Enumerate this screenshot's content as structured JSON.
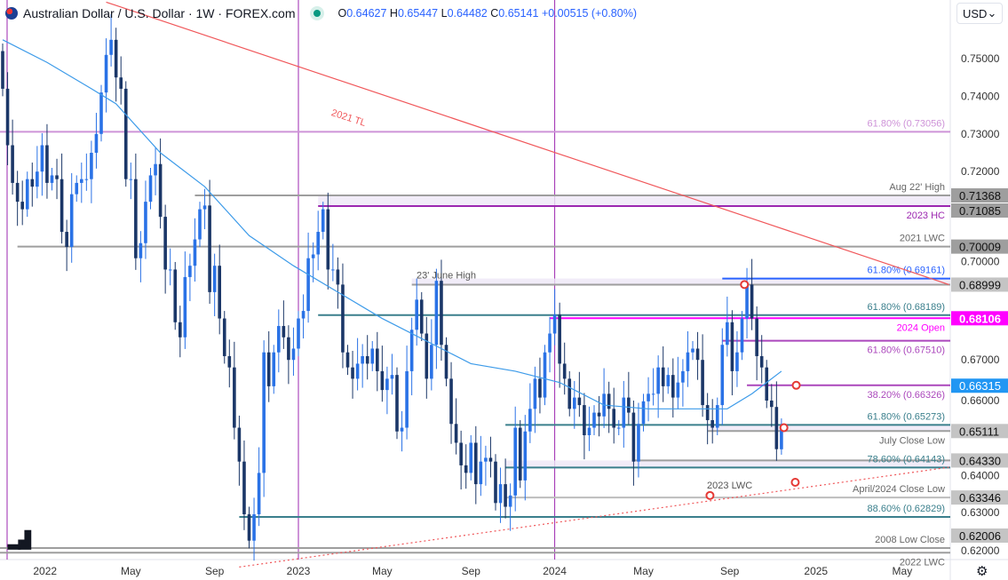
{
  "header": {
    "symbol_title": "Australian Dollar / U.S. Dollar · 1W · FOREX.com",
    "open_label": "O",
    "open": "0.64627",
    "high_label": "H",
    "high": "0.65447",
    "low_label": "L",
    "low": "0.64482",
    "close_label": "C",
    "close": "0.65141",
    "change": "+0.00515 (+0.80%)"
  },
  "currency_selector": "USD",
  "logo": "TV",
  "settings_icon": "gear-icon",
  "colors": {
    "bull": "#2a72e6",
    "bear": "#1b3768",
    "ma": "#3d9be9",
    "trendline": "#f0575a",
    "year_line": "#9c27b0",
    "fib_teal": "#3a7f8c",
    "open_magenta": "#ff00ff"
  },
  "chart_data": {
    "type": "candlestick",
    "interval": "1W",
    "start_week": "2021-11-01",
    "ylim": [
      0.615,
      0.765
    ],
    "closes": [
      0.742,
      0.727,
      0.717,
      0.712,
      0.71,
      0.718,
      0.716,
      0.72,
      0.727,
      0.717,
      0.719,
      0.718,
      0.704,
      0.7,
      0.714,
      0.717,
      0.718,
      0.718,
      0.725,
      0.73,
      0.741,
      0.751,
      0.755,
      0.745,
      0.742,
      0.718,
      0.718,
      0.697,
      0.701,
      0.712,
      0.719,
      0.722,
      0.708,
      0.694,
      0.694,
      0.68,
      0.676,
      0.692,
      0.695,
      0.702,
      0.71,
      0.711,
      0.688,
      0.695,
      0.681,
      0.671,
      0.668,
      0.652,
      0.643,
      0.629,
      0.622,
      0.629,
      0.64,
      0.672,
      0.663,
      0.672,
      0.679,
      0.676,
      0.67,
      0.673,
      0.681,
      0.683,
      0.697,
      0.698,
      0.704,
      0.71,
      0.694,
      0.694,
      0.69,
      0.672,
      0.668,
      0.665,
      0.669,
      0.671,
      0.669,
      0.673,
      0.667,
      0.662,
      0.665,
      0.666,
      0.651,
      0.652,
      0.667,
      0.678,
      0.686,
      0.677,
      0.665,
      0.674,
      0.691,
      0.674,
      0.665,
      0.653,
      0.648,
      0.642,
      0.64,
      0.648,
      0.637,
      0.643,
      0.644,
      0.643,
      0.632,
      0.637,
      0.631,
      0.634,
      0.652,
      0.638,
      0.651,
      0.657,
      0.665,
      0.66,
      0.672,
      0.677,
      0.682,
      0.669,
      0.665,
      0.657,
      0.66,
      0.658,
      0.65,
      0.652,
      0.656,
      0.655,
      0.661,
      0.657,
      0.652,
      0.652,
      0.66,
      0.656,
      0.643,
      0.653,
      0.659,
      0.661,
      0.661,
      0.668,
      0.663,
      0.666,
      0.66,
      0.664,
      0.667,
      0.672,
      0.673,
      0.67,
      0.658,
      0.654,
      0.652,
      0.658,
      0.674,
      0.68,
      0.667,
      0.672,
      0.681,
      0.69,
      0.681,
      0.671,
      0.668,
      0.6592,
      0.6575,
      0.6463,
      0.65141
    ],
    "ma_52": {
      "weeks": [
        0,
        9,
        18,
        23,
        32,
        41,
        50,
        59,
        68,
        77,
        86,
        95,
        104,
        113,
        122,
        131,
        140,
        147,
        152,
        155,
        158
      ],
      "values": [
        0.755,
        0.749,
        0.742,
        0.738,
        0.725,
        0.716,
        0.703,
        0.695,
        0.688,
        0.681,
        0.675,
        0.669,
        0.667,
        0.664,
        0.658,
        0.657,
        0.657,
        0.657,
        0.661,
        0.664,
        0.667
      ]
    },
    "x_ticks": [
      {
        "label": "2022",
        "week": 8.6
      },
      {
        "label": "May",
        "week": 26
      },
      {
        "label": "Sep",
        "week": 43
      },
      {
        "label": "2023",
        "week": 60
      },
      {
        "label": "May",
        "week": 77
      },
      {
        "label": "Sep",
        "week": 95
      },
      {
        "label": "2024",
        "week": 112
      },
      {
        "label": "May",
        "week": 130
      },
      {
        "label": "Sep",
        "week": 147.5
      },
      {
        "label": "2025",
        "week": 165
      },
      {
        "label": "May",
        "week": 182.5
      }
    ],
    "y_ticks": [
      "0.75000",
      "0.74000",
      "0.73000",
      "0.72000",
      "0.70000",
      "0.67000",
      "0.66000",
      "0.64000",
      "0.63000",
      "0.62000"
    ],
    "levels": [
      {
        "price": 0.73056,
        "label": "61.80% (0.73056)",
        "color": "#ce93d8",
        "from_week": -1,
        "axis": ""
      },
      {
        "price": 0.71368,
        "label": "Aug 22' High",
        "color": "#9e9e9e",
        "from_week": 39,
        "axis": "0.71368"
      },
      {
        "price": 0.71085,
        "label": "2023 HC",
        "color": "#9c27b0",
        "from_week": 64,
        "axis": "0.71085",
        "zone_to": 0.71368
      },
      {
        "price": 0.70009,
        "label": "2021 LWC",
        "color": "#9e9e9e",
        "from_week": 3,
        "axis": "0.70009"
      },
      {
        "price": 0.69161,
        "label": "61.80% (0.69161)",
        "color": "#2962ff",
        "from_week": 146,
        "axis": ""
      },
      {
        "price": 0.68999,
        "label": "",
        "color": "#9e9e9e",
        "from_week": 83,
        "axis": "0.68999",
        "zone_to": 0.69161
      },
      {
        "price": 0.68189,
        "label": "61.80% (0.68189)",
        "color": "#3a7f8c",
        "from_week": 64,
        "axis": ""
      },
      {
        "price": 0.68106,
        "label": "2024 Open",
        "color": "#ff00ff",
        "from_week": 111,
        "axis": "0.68106"
      },
      {
        "price": 0.6751,
        "label": "61.80% (0.67510)",
        "color": "#ab47bc",
        "from_week": 146,
        "axis": ""
      },
      {
        "price": 0.66326,
        "label": "38.20% (0.66326)",
        "color": "#ab47bc",
        "from_week": 151,
        "axis": ""
      },
      {
        "price": 0.65273,
        "label": "61.80% (0.65273)",
        "color": "#3a7f8c",
        "from_week": 102,
        "axis": ""
      },
      {
        "price": 0.65111,
        "label": "July Close Low",
        "color": "#9e9e9e",
        "from_week": 143,
        "axis": "0.65111",
        "zone_to": 0.65273
      },
      {
        "price": 0.6433,
        "label": "",
        "color": "#9e9e9e",
        "from_week": 128,
        "axis": "0.64330"
      },
      {
        "price": 0.64143,
        "label": "78.60% (0.64143)",
        "color": "#3a7f8c",
        "from_week": 102,
        "axis": "",
        "zone_to": 0.6433
      },
      {
        "price": 0.63346,
        "label": "April/2024 Close Low",
        "color": "#bdbdbd",
        "from_week": 102,
        "axis": "0.63346"
      },
      {
        "price": 0.62829,
        "label": "88.60% (0.62829)",
        "color": "#3a7f8c",
        "from_week": 48,
        "axis": ""
      },
      {
        "price": 0.62006,
        "label": "2008 Low Close",
        "color": "#9e9e9e",
        "from_week": -1,
        "axis": "0.62006"
      },
      {
        "price": 0.6188,
        "label": "2022 LWC",
        "color": "#9e9e9e",
        "from_week": -1,
        "axis": ""
      }
    ],
    "axis_highlight": {
      "price": 0.66315,
      "label": "0.66315",
      "color": "#2196f3"
    },
    "annotations": [
      {
        "text": "2021 TL",
        "week": 70,
        "price": 0.7335
      },
      {
        "text": "23' June High",
        "week": 90,
        "price": 0.6916
      },
      {
        "text": "2023 LWC",
        "week": 147.5,
        "price": 0.6358
      }
    ],
    "trendline_2021": {
      "p1": {
        "week": 21,
        "price": 0.765
      },
      "p2": {
        "week": 192,
        "price": 0.69
      }
    },
    "support_line": {
      "p1": {
        "week": 48,
        "price": 0.615
      },
      "p2": {
        "week": 192,
        "price": 0.6415
      }
    },
    "markers": [
      {
        "week": 150.5,
        "price": 0.69
      },
      {
        "week": 161,
        "price": 0.66326
      },
      {
        "week": 158.5,
        "price": 0.652
      },
      {
        "week": 143.5,
        "price": 0.634
      },
      {
        "week": 160.8,
        "price": 0.6375
      }
    ]
  }
}
